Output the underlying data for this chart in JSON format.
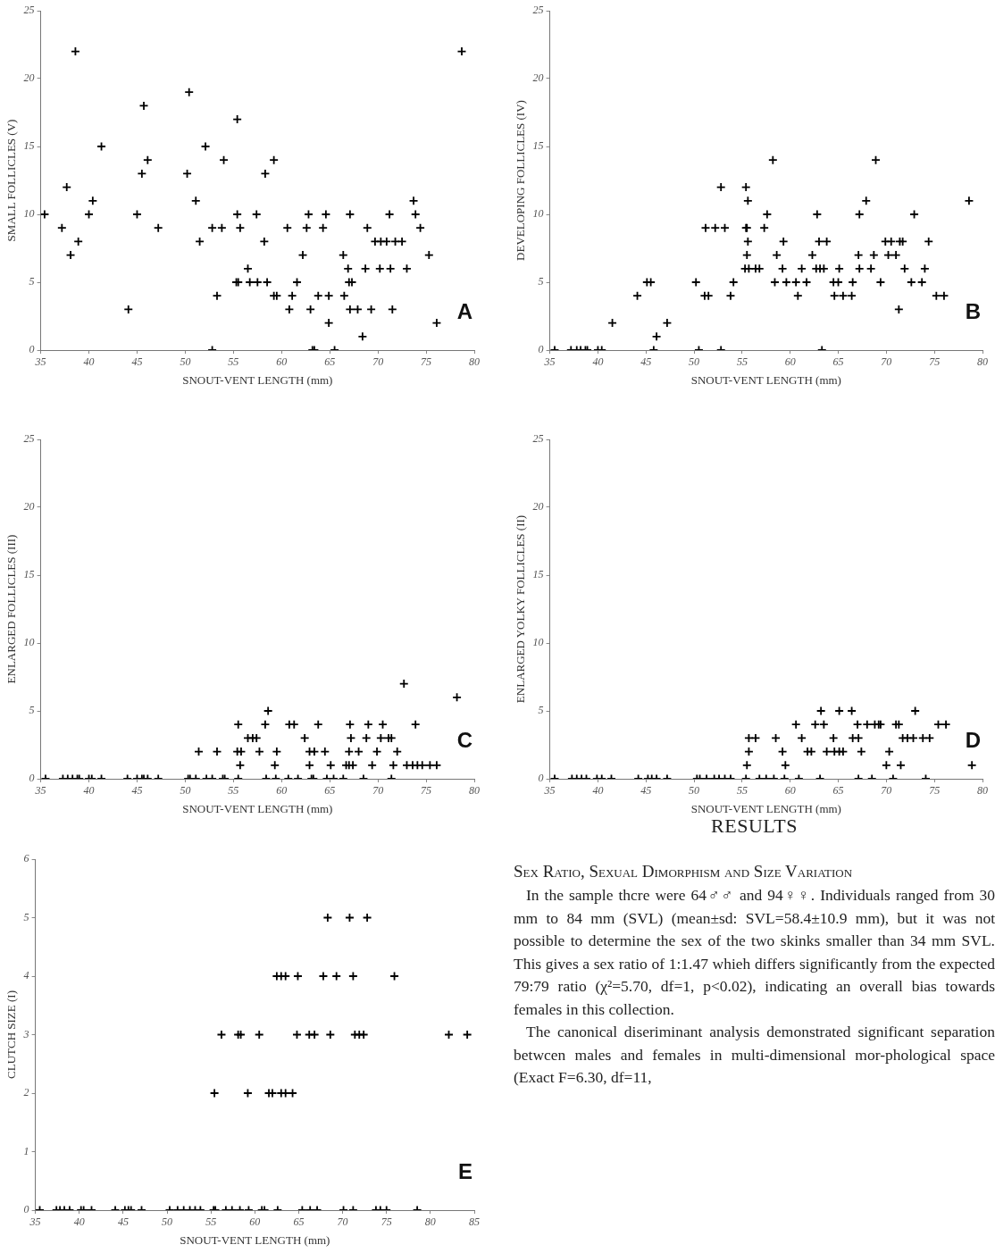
{
  "chart_data": [
    {
      "type": "scatter",
      "xlabel": "SNOUT-VENT LENGTH (mm)",
      "ylabel": "SMALL FOLLICLES (V)",
      "color": "#000000",
      "marker": "cross",
      "xlim": [
        35,
        80
      ],
      "ylim": [
        0,
        25
      ],
      "xticks": [
        35,
        40,
        45,
        50,
        55,
        60,
        65,
        70,
        75,
        80
      ],
      "yticks": [
        0,
        5,
        10,
        15,
        20,
        25
      ],
      "annotations": [
        "A"
      ],
      "x": [
        35.4,
        37.2,
        37.7,
        38.1,
        38.6,
        38.9,
        40,
        40.4,
        41.3,
        44.1,
        45,
        45.5,
        45.7,
        46.1,
        47.2,
        50.2,
        50.4,
        51.1,
        51.5,
        52.1,
        52.8,
        52.8,
        53.3,
        53.8,
        54,
        55.4,
        55.4,
        55.3,
        55.5,
        55.7,
        56.5,
        56.7,
        57.4,
        57.5,
        58.2,
        58.3,
        58.5,
        59.2,
        59.2,
        59.5,
        60.6,
        60.8,
        61.1,
        61.6,
        62.2,
        62.6,
        62.8,
        63,
        63.2,
        63.4,
        63.8,
        64.3,
        64.6,
        64.9,
        64.9,
        65.5,
        66.4,
        66.5,
        66.9,
        67.1,
        67,
        67.3,
        67.1,
        67.9,
        68.4,
        68.7,
        68.9,
        69.3,
        69.7,
        70.2,
        70.3,
        70.9,
        71.2,
        71.3,
        71.5,
        71.8,
        72.5,
        73,
        73.7,
        73.9,
        74.4,
        75.3,
        76.1,
        78.7
      ],
      "values": [
        10,
        9,
        12,
        7,
        22,
        8,
        10,
        11,
        15,
        3,
        10,
        13,
        18,
        14,
        9,
        13,
        19,
        11,
        8,
        15,
        0,
        9,
        4,
        9,
        14,
        17,
        10,
        5,
        5,
        9,
        6,
        5,
        10,
        5,
        8,
        13,
        5,
        14,
        4,
        4,
        9,
        3,
        4,
        5,
        7,
        9,
        10,
        3,
        0,
        0,
        4,
        9,
        10,
        4,
        2,
        0,
        7,
        4,
        6,
        10,
        5,
        5,
        3,
        3,
        1,
        6,
        9,
        3,
        8,
        6,
        8,
        8,
        10,
        6,
        3,
        8,
        8,
        6,
        11,
        10,
        9,
        7,
        2,
        22
      ]
    },
    {
      "type": "scatter",
      "xlabel": "SNOUT-VENT LENGTH (mm)",
      "ylabel": "DEVELOPING FOLLICLES (IV)",
      "color": "#000000",
      "marker": "cross",
      "xlim": [
        35,
        80
      ],
      "ylim": [
        0,
        25
      ],
      "xticks": [
        35,
        40,
        45,
        50,
        55,
        60,
        65,
        70,
        75,
        80
      ],
      "yticks": [
        0,
        5,
        10,
        15,
        20,
        25
      ],
      "annotations": [
        "B"
      ],
      "x": [
        35.5,
        37.2,
        37.8,
        38.2,
        38.7,
        38.9,
        40,
        40.4,
        41.5,
        44.1,
        45.1,
        45.5,
        45.8,
        46.1,
        47.2,
        50.2,
        50.5,
        51.2,
        51.1,
        51.5,
        52.2,
        52.8,
        52.8,
        53.2,
        53.8,
        54.1,
        55.4,
        55.6,
        55.4,
        55.5,
        55.6,
        55.5,
        55.3,
        55.7,
        56.4,
        56.8,
        57.3,
        57.6,
        58.2,
        58.6,
        58.4,
        59.2,
        59.3,
        59.6,
        60.6,
        60.8,
        61.2,
        61.7,
        62.3,
        62.8,
        63,
        62.7,
        63.1,
        63.5,
        63.8,
        63.3,
        64.5,
        65,
        64.6,
        65.1,
        65.5,
        66.4,
        66.5,
        67.1,
        67.2,
        67.2,
        67.9,
        68.4,
        68.7,
        68.9,
        69.4,
        69.9,
        70.2,
        70.5,
        71,
        71.3,
        71.4,
        71.7,
        71.9,
        72.6,
        72.9,
        73.7,
        74,
        74.4,
        75.2,
        76,
        78.6
      ],
      "values": [
        0,
        0,
        0,
        0,
        0,
        0,
        0,
        0,
        2,
        4,
        5,
        5,
        0,
        1,
        2,
        5,
        0,
        9,
        4,
        4,
        9,
        12,
        0,
        9,
        4,
        5,
        12,
        11,
        9,
        9,
        8,
        7,
        6,
        6,
        6,
        6,
        9,
        10,
        14,
        7,
        5,
        6,
        8,
        5,
        5,
        4,
        6,
        5,
        7,
        10,
        8,
        6,
        6,
        6,
        8,
        0,
        5,
        5,
        4,
        6,
        4,
        4,
        5,
        7,
        6,
        10,
        11,
        6,
        7,
        14,
        5,
        8,
        7,
        8,
        7,
        3,
        8,
        8,
        6,
        5,
        10,
        5,
        6,
        8,
        4,
        4,
        11
      ]
    },
    {
      "type": "scatter",
      "xlabel": "SNOUT-VENT LENGTH (mm)",
      "ylabel": "ENLARGED FOLLICLES (III)",
      "color": "#000000",
      "marker": "cross",
      "xlim": [
        35,
        80
      ],
      "ylim": [
        0,
        25
      ],
      "xticks": [
        35,
        40,
        45,
        50,
        55,
        60,
        65,
        70,
        75,
        80
      ],
      "yticks": [
        0,
        5,
        10,
        15,
        20,
        25
      ],
      "annotations": [
        "C"
      ],
      "x": [
        35.5,
        37.3,
        37.8,
        38.3,
        38.8,
        39,
        40,
        40.3,
        41.3,
        44,
        45,
        45.5,
        45.7,
        46.1,
        47.2,
        50.3,
        50.5,
        51.1,
        52.2,
        52.8,
        53.9,
        54.1,
        55.5,
        58.4,
        59.4,
        60.7,
        61.7,
        63.1,
        63.3,
        64.7,
        65.4,
        66.4,
        68.5,
        71.4,
        55.7,
        59.3,
        62.9,
        65.1,
        66.7,
        67,
        67.4,
        69.4,
        71.6,
        73,
        73.6,
        74.1,
        74.6,
        75.4,
        76.1,
        51.4,
        53.3,
        55.4,
        55.8,
        57.7,
        59.5,
        62.9,
        63.4,
        64.5,
        67,
        68,
        69.9,
        72,
        56.5,
        57,
        57.4,
        62.4,
        67.2,
        68.8,
        70.3,
        71.1,
        71.4,
        55.5,
        58.3,
        60.8,
        61.3,
        63.8,
        67.1,
        69,
        70.5,
        73.9,
        58.6,
        72.7,
        78.2
      ],
      "values": [
        0,
        0,
        0,
        0,
        0,
        0,
        0,
        0,
        0,
        0,
        0,
        0,
        0,
        0,
        0,
        0,
        0,
        0,
        0,
        0,
        0,
        0,
        0,
        0,
        0,
        0,
        0,
        0,
        0,
        0,
        0,
        0,
        0,
        0,
        1,
        1,
        1,
        1,
        1,
        1,
        1,
        1,
        1,
        1,
        1,
        1,
        1,
        1,
        1,
        2,
        2,
        2,
        2,
        2,
        2,
        2,
        2,
        2,
        2,
        2,
        2,
        2,
        3,
        3,
        3,
        3,
        3,
        3,
        3,
        3,
        3,
        4,
        4,
        4,
        4,
        4,
        4,
        4,
        4,
        4,
        5,
        7,
        6
      ]
    },
    {
      "type": "scatter",
      "xlabel": "SNOUT-VENT LENGTH (mm)",
      "ylabel": "ENLARGED YOLKY FOLLICLES (II)",
      "color": "#000000",
      "marker": "cross",
      "xlim": [
        35,
        80
      ],
      "ylim": [
        0,
        25
      ],
      "xticks": [
        35,
        40,
        45,
        50,
        55,
        60,
        65,
        70,
        75,
        80
      ],
      "yticks": [
        0,
        5,
        10,
        15,
        20,
        25
      ],
      "annotations": [
        "D"
      ],
      "x": [
        35.5,
        37.3,
        37.8,
        38.3,
        38.8,
        39.9,
        40.4,
        41.4,
        44.2,
        45.2,
        45.6,
        46.1,
        47.2,
        50.3,
        50.6,
        51.3,
        52.1,
        52.6,
        53.2,
        53.8,
        55.4,
        56.8,
        57.5,
        58.3,
        59.4,
        60.9,
        63.1,
        67.1,
        68.5,
        70.7,
        74.1,
        55.5,
        59.5,
        70,
        71.5,
        78.9,
        55.7,
        59.2,
        61.8,
        62.2,
        63.8,
        64.6,
        65.1,
        65.5,
        67.4,
        70.3,
        55.7,
        56.4,
        58.5,
        61.2,
        64.5,
        66.5,
        67.1,
        71.7,
        72.2,
        72.8,
        73.8,
        74.5,
        60.6,
        62.6,
        63.5,
        67,
        68,
        68.8,
        69.2,
        69.4,
        71,
        71.3,
        75.4,
        76.2,
        63.2,
        65.1,
        66.4,
        73
      ],
      "values": [
        0,
        0,
        0,
        0,
        0,
        0,
        0,
        0,
        0,
        0,
        0,
        0,
        0,
        0,
        0,
        0,
        0,
        0,
        0,
        0,
        0,
        0,
        0,
        0,
        0,
        0,
        0,
        0,
        0,
        0,
        0,
        1,
        1,
        1,
        1,
        1,
        2,
        2,
        2,
        2,
        2,
        2,
        2,
        2,
        2,
        2,
        3,
        3,
        3,
        3,
        3,
        3,
        3,
        3,
        3,
        3,
        3,
        3,
        4,
        4,
        4,
        4,
        4,
        4,
        4,
        4,
        4,
        4,
        4,
        4,
        5,
        5,
        5,
        5
      ]
    },
    {
      "type": "scatter",
      "xlabel": "SNOUT-VENT LENGTH (mm)",
      "ylabel": "CLUTCH SIZE (I)",
      "color": "#000000",
      "marker": "cross",
      "xlim": [
        35,
        85
      ],
      "ylim": [
        0,
        6
      ],
      "xticks": [
        35,
        40,
        45,
        50,
        55,
        60,
        65,
        70,
        75,
        80,
        85
      ],
      "yticks": [
        0,
        1,
        2,
        3,
        4,
        5,
        6
      ],
      "annotations": [
        "E"
      ],
      "x": [
        35.5,
        37.4,
        37.8,
        38.3,
        38.9,
        40.2,
        40.5,
        41.4,
        44.1,
        45.2,
        45.6,
        45.9,
        47.1,
        50.3,
        51.2,
        51.9,
        52.6,
        53.2,
        53.8,
        55.3,
        55.5,
        56.7,
        57.4,
        58.3,
        59.3,
        60.8,
        61.1,
        62.6,
        65.4,
        66.3,
        67.1,
        70.1,
        71.2,
        73.8,
        74.3,
        75,
        78.5,
        55.4,
        59.2,
        61.6,
        62,
        63,
        63.5,
        64.3,
        56.2,
        58.1,
        58.4,
        60.5,
        64.8,
        66.2,
        66.8,
        68.6,
        71.4,
        71.9,
        72.4,
        82.1,
        84.2,
        62.5,
        63,
        63.5,
        64.9,
        67.8,
        69.3,
        71.2,
        75.9,
        68.3,
        70.8,
        72.8
      ],
      "values": [
        0,
        0,
        0,
        0,
        0,
        0,
        0,
        0,
        0,
        0,
        0,
        0,
        0,
        0,
        0,
        0,
        0,
        0,
        0,
        0,
        0,
        0,
        0,
        0,
        0,
        0,
        0,
        0,
        0,
        0,
        0,
        0,
        0,
        0,
        0,
        0,
        0,
        2,
        2,
        2,
        2,
        2,
        2,
        2,
        3,
        3,
        3,
        3,
        3,
        3,
        3,
        3,
        3,
        3,
        3,
        3,
        3,
        4,
        4,
        4,
        4,
        4,
        4,
        4,
        4,
        5,
        5,
        5
      ]
    },
    {
      "type": "other",
      "title": "RESULTS",
      "subtitle": "Sex Ratio, Sexual Dimorphism and Size Variation",
      "annotations": [
        "In the sample thcre were 64♂♂ and 94♀♀. Individuals ranged from 30 mm to 84 mm (SVL) (mean±sd: SVL=58.4±10.9 mm), but it was not possible to determine the sex of the two skinks smaller than 34 mm SVL. This gives a sex ratio of 1:1.47 whieh differs significantly from the expected 79:79 ratio (χ²=5.70, df=1, p<0.02), indicating an overall bias towards females in this collection.",
        "The canonical diseriminant analysis demonstrated significant separation betwcen males and females in multi-dimensional mor-phological space (Exact F=6.30, df=11,"
      ]
    }
  ]
}
